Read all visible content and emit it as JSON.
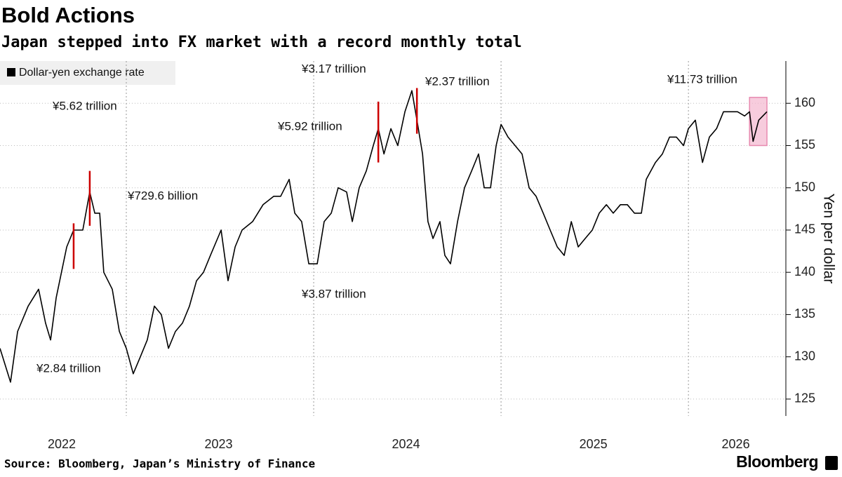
{
  "chart_data": {
    "type": "line",
    "title": "Bold Actions",
    "subtitle": "Japan stepped into FX market with a record monthly total",
    "y_label": "Yen per dollar",
    "source": "Source: Bloomberg, Japan’s Ministry of Finance",
    "brand": "Bloomberg",
    "x": [
      2022.326,
      2022.382,
      2022.42,
      2022.476,
      2022.532,
      2022.569,
      2022.596,
      2022.626,
      2022.682,
      2022.719,
      2022.768,
      2022.805,
      2022.832,
      2022.858,
      2022.88,
      2022.925,
      2022.963,
      2023.0,
      2023.037,
      2023.075,
      2023.112,
      2023.15,
      2023.187,
      2023.225,
      2023.262,
      2023.3,
      2023.337,
      2023.375,
      2023.412,
      2023.449,
      2023.506,
      2023.543,
      2023.581,
      2023.618,
      2023.674,
      2023.73,
      2023.787,
      2023.824,
      2023.869,
      2023.899,
      2023.936,
      2023.974,
      2024.019,
      2024.056,
      2024.094,
      2024.131,
      2024.176,
      2024.206,
      2024.243,
      2024.281,
      2024.318,
      2024.345,
      2024.375,
      2024.412,
      2024.449,
      2024.487,
      2024.524,
      2024.551,
      2024.581,
      2024.61,
      2024.637,
      2024.674,
      2024.7,
      2024.73,
      2024.768,
      2024.805,
      2024.843,
      2024.88,
      2024.91,
      2024.944,
      2024.974,
      2025.0,
      2025.037,
      2025.075,
      2025.112,
      2025.15,
      2025.187,
      2025.225,
      2025.262,
      2025.3,
      2025.337,
      2025.375,
      2025.412,
      2025.449,
      2025.487,
      2025.524,
      2025.562,
      2025.599,
      2025.637,
      2025.674,
      2025.712,
      2025.749,
      2025.775,
      2025.824,
      2025.861,
      2025.899,
      2025.936,
      2025.974,
      2026.0,
      2026.037,
      2026.075,
      2026.112,
      2026.15,
      2026.187,
      2026.225,
      2026.262,
      2026.3,
      2026.326,
      2026.345,
      2026.375,
      2026.419
    ],
    "series": [
      {
        "name": "Dollar-yen exchange rate",
        "color": "#000000",
        "values": [
          131,
          127,
          133,
          136,
          138,
          134,
          132,
          137,
          143,
          145,
          145,
          149.5,
          147,
          147,
          140,
          138,
          133,
          131,
          128,
          130,
          132,
          136,
          135,
          131,
          133,
          134,
          136,
          139,
          140,
          142,
          145,
          139,
          143,
          145,
          146,
          148,
          149,
          149,
          151,
          147,
          146,
          141,
          141,
          146,
          147,
          150,
          149.5,
          146,
          150,
          152,
          155,
          157,
          154,
          157,
          155,
          159,
          161.5,
          158,
          154,
          146,
          144,
          146,
          142,
          141,
          146,
          150,
          152,
          154,
          150,
          150,
          155,
          157.5,
          156,
          155,
          154,
          150,
          149,
          147,
          145,
          143,
          142,
          146,
          143,
          144,
          145,
          147,
          148,
          147,
          148,
          148,
          147,
          147,
          151,
          153,
          154,
          156,
          156,
          155,
          157,
          158,
          153,
          156,
          157,
          159,
          159,
          159,
          158.5,
          159,
          155.5,
          158,
          159
        ]
      }
    ],
    "interventions": [
      {
        "x": 2022.719,
        "low": 140.4,
        "high": 145.8
      },
      {
        "x": 2022.805,
        "low": 145.5,
        "high": 152
      },
      {
        "x": 2024.345,
        "low": 153,
        "high": 160.2
      },
      {
        "x": 2024.551,
        "low": 156.4,
        "high": 161.8
      }
    ],
    "highlight": {
      "xlim": [
        2026.326,
        2026.419
      ],
      "ylim": [
        155,
        160.7
      ],
      "color": "#f4b6cf"
    },
    "intervention_color": "#cc0000",
    "annotations": [
      "¥5.62 trillion",
      "¥729.6 billion",
      "¥2.84 trillion",
      "¥3.17 trillion",
      "¥5.92 trillion",
      "¥3.87 trillion",
      "¥2.37 trillion",
      "¥11.73 trillion"
    ],
    "xlim": [
      2022.326,
      2026.52
    ],
    "xticks": [
      {
        "value": 2022,
        "label": "2022"
      },
      {
        "value": 2023,
        "label": "2023"
      },
      {
        "value": 2024,
        "label": "2024"
      },
      {
        "value": 2025,
        "label": "2025"
      },
      {
        "value": 2026,
        "label": "2026"
      }
    ],
    "ylim": [
      123,
      165
    ],
    "yticks": [
      125,
      130,
      135,
      140,
      145,
      150,
      155,
      160
    ],
    "grid": true
  }
}
